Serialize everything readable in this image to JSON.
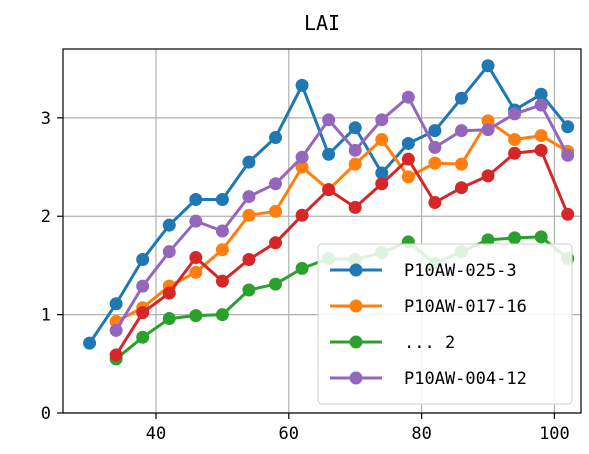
{
  "chart_data": {
    "type": "line",
    "title": "LAI",
    "xlabel": "",
    "ylabel": "",
    "xlim": [
      26,
      104
    ],
    "ylim": [
      0,
      3.7
    ],
    "xticks": [
      40,
      60,
      80,
      100
    ],
    "yticks": [
      0,
      1,
      2,
      3
    ],
    "grid": true,
    "legend_position": "lower-right",
    "series": [
      {
        "name": "P10AW-025-3",
        "color": "#1f77b4",
        "x": [
          30,
          34,
          38,
          42,
          46,
          50,
          54,
          58,
          62,
          66,
          70,
          74,
          78,
          82,
          86,
          90,
          94,
          98,
          102
        ],
        "y": [
          0.71,
          1.11,
          1.56,
          1.91,
          2.17,
          2.17,
          2.55,
          2.8,
          3.33,
          2.63,
          2.9,
          2.44,
          2.74,
          2.87,
          3.2,
          3.53,
          3.08,
          3.24,
          2.91
        ]
      },
      {
        "name": "P10AW-017-16",
        "color": "#ff7f0e",
        "x": [
          34,
          38,
          42,
          46,
          50,
          54,
          58,
          62,
          66,
          70,
          74,
          78,
          82,
          86,
          90,
          94,
          98,
          102
        ],
        "y": [
          0.93,
          1.07,
          1.29,
          1.43,
          1.66,
          2.01,
          2.05,
          2.5,
          2.27,
          2.53,
          2.78,
          2.4,
          2.54,
          2.53,
          2.97,
          2.78,
          2.82,
          2.66
        ]
      },
      {
        "name": "... 2",
        "color": "#2ca02c",
        "x": [
          34,
          38,
          42,
          46,
          50,
          54,
          58,
          62,
          66,
          70,
          74,
          78,
          82,
          86,
          90,
          94,
          98,
          102
        ],
        "y": [
          0.55,
          0.77,
          0.96,
          0.99,
          1.0,
          1.25,
          1.31,
          1.47,
          1.57,
          1.56,
          1.63,
          1.74,
          1.52,
          1.64,
          1.76,
          1.78,
          1.79,
          1.57
        ]
      },
      {
        "name": "",
        "color": "#d62728",
        "x": [
          34,
          38,
          42,
          46,
          50,
          54,
          58,
          62,
          66,
          70,
          74,
          78,
          82,
          86,
          90,
          94,
          98,
          102
        ],
        "y": [
          0.59,
          1.02,
          1.22,
          1.58,
          1.34,
          1.56,
          1.73,
          2.01,
          2.27,
          2.09,
          2.33,
          2.58,
          2.14,
          2.29,
          2.41,
          2.64,
          2.67,
          2.02
        ]
      },
      {
        "name": "P10AW-004-12",
        "color": "#9467bd",
        "x": [
          34,
          38,
          42,
          46,
          50,
          54,
          58,
          62,
          66,
          70,
          74,
          78,
          82,
          86,
          90,
          94,
          98,
          102
        ],
        "y": [
          0.84,
          1.29,
          1.64,
          1.95,
          1.85,
          2.2,
          2.33,
          2.6,
          2.98,
          2.67,
          2.98,
          3.21,
          2.7,
          2.87,
          2.88,
          3.04,
          3.13,
          2.62
        ]
      }
    ],
    "legend_order": [
      0,
      1,
      2,
      4
    ]
  }
}
